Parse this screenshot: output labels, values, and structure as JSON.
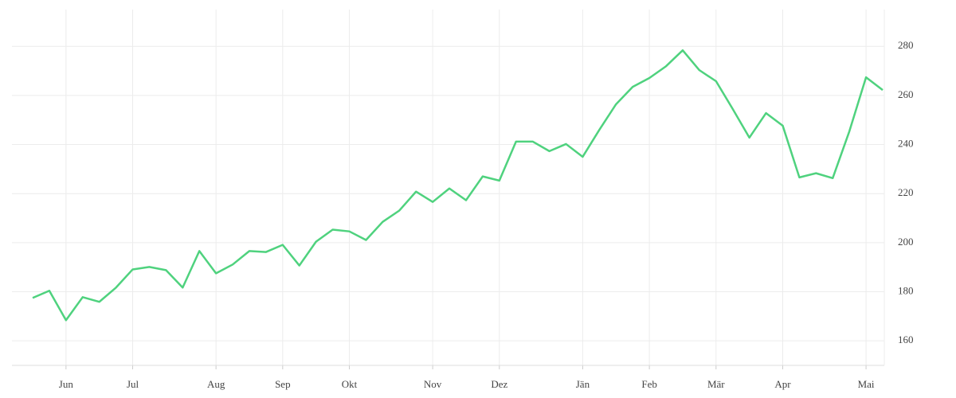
{
  "chart_data": {
    "type": "line",
    "categories": [
      null,
      null,
      "Jun",
      null,
      null,
      null,
      "Jul",
      null,
      null,
      null,
      null,
      "Aug",
      null,
      null,
      null,
      "Sep",
      null,
      null,
      null,
      "Okt",
      null,
      null,
      null,
      null,
      "Nov",
      null,
      null,
      null,
      "Dez",
      null,
      null,
      null,
      null,
      "Jän",
      null,
      null,
      null,
      "Feb",
      null,
      null,
      null,
      "Mär",
      null,
      null,
      null,
      "Apr",
      null,
      null,
      null,
      null,
      "Mai",
      null
    ],
    "series": [
      {
        "color": "#4fd27e",
        "values": [
          177.5,
          180.4,
          168.4,
          177.8,
          175.9,
          181.7,
          189.1,
          190.1,
          188.8,
          181.7,
          196.6,
          187.5,
          191.1,
          196.6,
          196.2,
          199.1,
          190.7,
          200.4,
          205.3,
          204.6,
          201.1,
          208.5,
          213.1,
          220.8,
          216.6,
          222.1,
          217.3,
          227.0,
          225.3,
          241.2,
          241.2,
          237.3,
          240.2,
          235.0,
          246.0,
          256.4,
          263.5,
          267.1,
          271.9,
          278.4,
          270.3,
          265.8,
          254.5,
          242.8,
          252.8,
          247.7,
          226.6,
          228.3,
          226.3,
          245.4,
          267.4,
          262.2
        ]
      }
    ],
    "ylim": [
      150,
      295
    ],
    "yticks": [
      160,
      180,
      200,
      220,
      240,
      260,
      280
    ],
    "grid": true
  }
}
